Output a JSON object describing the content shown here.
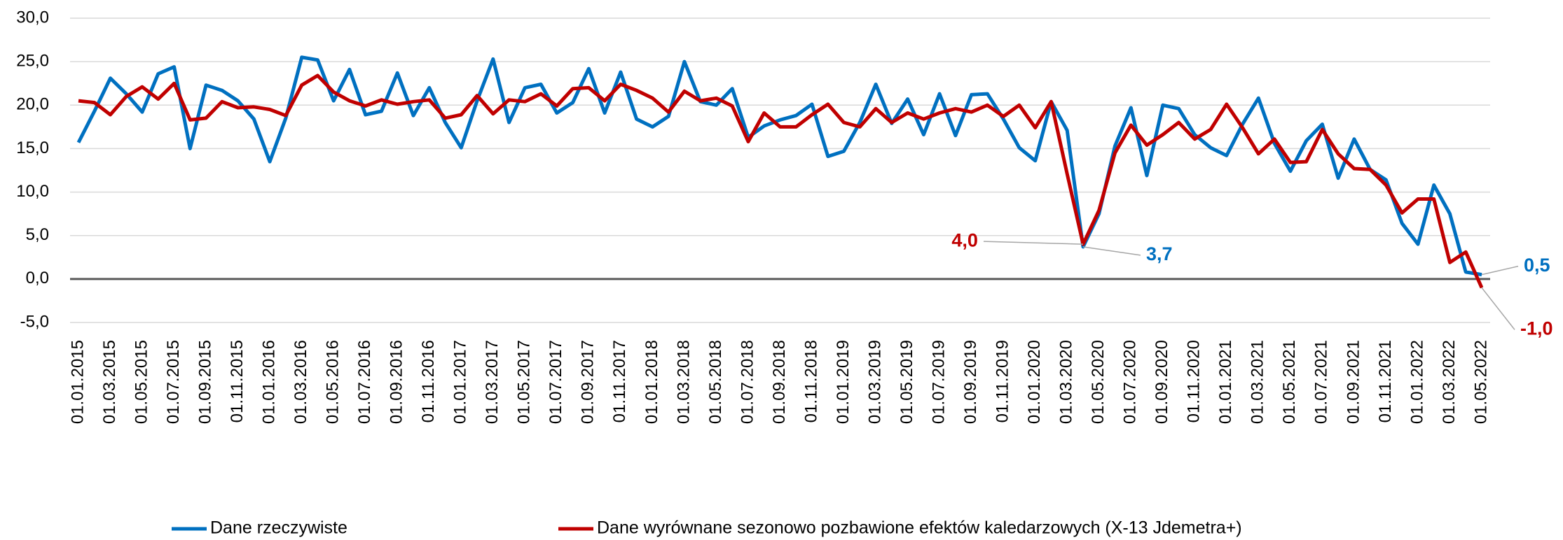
{
  "chart_data": {
    "type": "line",
    "categories": [
      "01.01.2015",
      null,
      "01.03.2015",
      null,
      "01.05.2015",
      null,
      "01.07.2015",
      null,
      "01.09.2015",
      null,
      "01.11.2015",
      null,
      "01.01.2016",
      null,
      "01.03.2016",
      null,
      "01.05.2016",
      null,
      "01.07.2016",
      null,
      "01.09.2016",
      null,
      "01.11.2016",
      null,
      "01.01.2017",
      null,
      "01.03.2017",
      null,
      "01.05.2017",
      null,
      "01.07.2017",
      null,
      "01.09.2017",
      null,
      "01.11.2017",
      null,
      "01.01.2018",
      null,
      "01.03.2018",
      null,
      "01.05.2018",
      null,
      "01.07.2018",
      null,
      "01.09.2018",
      null,
      "01.11.2018",
      null,
      "01.01.2019",
      null,
      "01.03.2019",
      null,
      "01.05.2019",
      null,
      "01.07.2019",
      null,
      "01.09.2019",
      null,
      "01.11.2019",
      null,
      "01.01.2020",
      null,
      "01.03.2020",
      null,
      "01.05.2020",
      null,
      "01.07.2020",
      null,
      "01.09.2020",
      null,
      "01.11.2020",
      null,
      "01.01.2021",
      null,
      "01.03.2021",
      null,
      "01.05.2021",
      null,
      "01.07.2021",
      null,
      "01.09.2021",
      null,
      "01.11.2021",
      null,
      "01.01.2022",
      null,
      "01.03.2022",
      null,
      "01.05.2022"
    ],
    "series": [
      {
        "name": "Dane rzeczywiste",
        "color": "#0070c0",
        "values": [
          15.7,
          19.3,
          23.1,
          21.3,
          19.2,
          23.6,
          24.4,
          15.0,
          22.3,
          21.7,
          20.5,
          18.4,
          13.5,
          18.5,
          25.5,
          25.2,
          20.5,
          24.1,
          18.9,
          19.3,
          23.7,
          18.8,
          22.0,
          18.0,
          15.1,
          20.5,
          25.3,
          18.0,
          22.0,
          22.4,
          19.1,
          20.3,
          24.2,
          19.1,
          23.8,
          18.4,
          17.5,
          18.7,
          25.0,
          20.4,
          20.0,
          21.9,
          16.3,
          17.6,
          18.3,
          18.8,
          20.1,
          14.1,
          14.7,
          18.0,
          22.4,
          17.9,
          20.7,
          16.6,
          21.3,
          16.5,
          21.2,
          21.3,
          18.4,
          15.1,
          13.6,
          20.4,
          17.1,
          3.7,
          7.5,
          15.3,
          19.7,
          11.9,
          20.0,
          19.6,
          16.6,
          15.1,
          14.2,
          17.8,
          20.8,
          15.6,
          12.4,
          15.9,
          17.8,
          11.6,
          16.1,
          12.6,
          11.4,
          6.4,
          4.0,
          10.8,
          7.5,
          0.8,
          0.5
        ],
        "value_labels": [
          null,
          null,
          null,
          null,
          null,
          null,
          null,
          null,
          null,
          null,
          null,
          null,
          null,
          null,
          null,
          null,
          null,
          null,
          null,
          null,
          null,
          null,
          null,
          null,
          null,
          null,
          null,
          null,
          null,
          null,
          null,
          null,
          null,
          null,
          null,
          null,
          null,
          null,
          null,
          null,
          null,
          null,
          null,
          null,
          null,
          null,
          null,
          null,
          null,
          null,
          null,
          null,
          null,
          null,
          null,
          null,
          null,
          null,
          null,
          null,
          null,
          null,
          null,
          "3,7",
          null,
          null,
          null,
          null,
          null,
          null,
          null,
          null,
          null,
          null,
          null,
          null,
          null,
          null,
          null,
          null,
          null,
          null,
          null,
          null,
          null,
          null,
          null,
          null,
          "0,5"
        ]
      },
      {
        "name": "Dane wyrównane sezonowo pozbawione efektów kaledarzowych (X-13 Jdemetra+)",
        "color": "#c00000",
        "values": [
          20.5,
          20.3,
          18.9,
          21.0,
          22.1,
          20.7,
          22.5,
          18.3,
          18.5,
          20.4,
          19.7,
          19.8,
          19.5,
          18.8,
          22.3,
          23.4,
          21.5,
          20.5,
          19.9,
          20.6,
          20.1,
          20.4,
          20.6,
          18.5,
          18.9,
          21.1,
          19.0,
          20.6,
          20.4,
          21.3,
          19.9,
          21.9,
          22.0,
          20.5,
          22.4,
          21.7,
          20.8,
          19.2,
          21.6,
          20.5,
          20.8,
          19.9,
          15.8,
          19.1,
          17.5,
          17.5,
          18.9,
          20.1,
          18.0,
          17.5,
          19.6,
          18.0,
          19.1,
          18.4,
          19.1,
          19.6,
          19.2,
          20.0,
          18.7,
          20.0,
          17.4,
          20.4,
          12.1,
          4.0,
          7.9,
          14.5,
          17.7,
          15.4,
          16.6,
          18.0,
          16.1,
          17.2,
          20.1,
          17.4,
          14.4,
          16.1,
          13.4,
          13.5,
          17.2,
          14.4,
          12.7,
          12.6,
          10.8,
          7.6,
          9.2,
          9.2,
          1.9,
          3.1,
          -1.0
        ],
        "value_labels": [
          null,
          null,
          null,
          null,
          null,
          null,
          null,
          null,
          null,
          null,
          null,
          null,
          null,
          null,
          null,
          null,
          null,
          null,
          null,
          null,
          null,
          null,
          null,
          null,
          null,
          null,
          null,
          null,
          null,
          null,
          null,
          null,
          null,
          null,
          null,
          null,
          null,
          null,
          null,
          null,
          null,
          null,
          null,
          null,
          null,
          null,
          null,
          null,
          null,
          null,
          null,
          null,
          null,
          null,
          null,
          null,
          null,
          null,
          null,
          null,
          null,
          null,
          null,
          "4,0",
          null,
          null,
          null,
          null,
          null,
          null,
          null,
          null,
          null,
          null,
          null,
          null,
          null,
          null,
          null,
          null,
          null,
          null,
          null,
          null,
          null,
          null,
          null,
          null,
          "-1,0"
        ]
      }
    ],
    "ylim": [
      -5,
      30
    ],
    "yticks": [
      {
        "value": -5,
        "label": "-5,0"
      },
      {
        "value": 0,
        "label": "0,0"
      },
      {
        "value": 5,
        "label": "5,0"
      },
      {
        "value": 10,
        "label": "10,0"
      },
      {
        "value": 15,
        "label": "15,0"
      },
      {
        "value": 20,
        "label": "20,0"
      },
      {
        "value": 25,
        "label": "25,0"
      },
      {
        "value": 30,
        "label": "30,0"
      }
    ],
    "grid": true,
    "legend": "bottom"
  }
}
